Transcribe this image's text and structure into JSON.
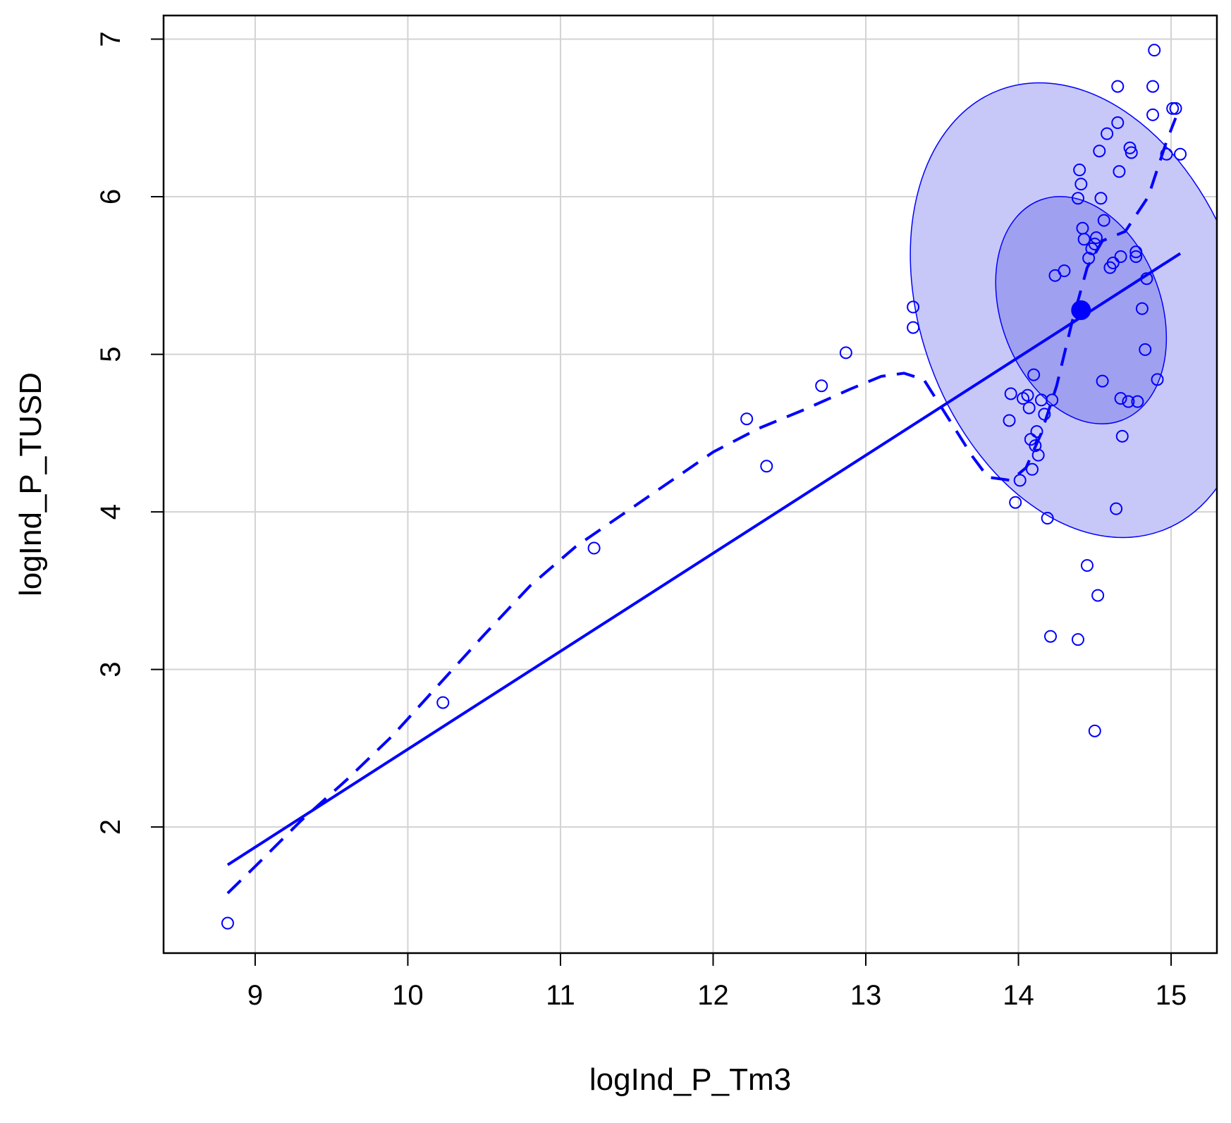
{
  "chart_data": {
    "type": "scatter",
    "title": "",
    "xlabel": "logInd_P_Tm3",
    "ylabel": "logInd_P_TUSD",
    "xlim": [
      8.4,
      15.3
    ],
    "ylim": [
      1.2,
      7.15
    ],
    "xticks": [
      9,
      10,
      11,
      12,
      13,
      14,
      15
    ],
    "yticks": [
      2,
      3,
      4,
      5,
      6,
      7
    ],
    "grid": true,
    "colors": {
      "points": "#0000FF",
      "lines": "#0000FF",
      "ellipse_outer_fill": "#c8c8f8",
      "ellipse_inner_fill": "#a0a0f0",
      "grid": "#d3d3d3",
      "frame": "#000000"
    },
    "points": [
      [
        8.82,
        1.39
      ],
      [
        10.23,
        2.79
      ],
      [
        11.22,
        3.77
      ],
      [
        12.22,
        4.59
      ],
      [
        12.35,
        4.29
      ],
      [
        12.71,
        4.8
      ],
      [
        12.87,
        5.01
      ],
      [
        13.31,
        5.3
      ],
      [
        13.31,
        5.17
      ],
      [
        13.94,
        4.58
      ],
      [
        13.95,
        4.75
      ],
      [
        13.98,
        4.06
      ],
      [
        14.01,
        4.2
      ],
      [
        14.03,
        4.72
      ],
      [
        14.06,
        4.74
      ],
      [
        14.07,
        4.66
      ],
      [
        14.08,
        4.46
      ],
      [
        14.09,
        4.27
      ],
      [
        14.1,
        4.87
      ],
      [
        14.11,
        4.42
      ],
      [
        14.12,
        4.51
      ],
      [
        14.13,
        4.36
      ],
      [
        14.15,
        4.71
      ],
      [
        14.17,
        4.62
      ],
      [
        14.19,
        3.96
      ],
      [
        14.21,
        3.21
      ],
      [
        14.22,
        4.71
      ],
      [
        14.24,
        5.5
      ],
      [
        14.3,
        5.53
      ],
      [
        14.39,
        3.19
      ],
      [
        14.39,
        5.99
      ],
      [
        14.4,
        6.17
      ],
      [
        14.41,
        6.08
      ],
      [
        14.42,
        5.8
      ],
      [
        14.43,
        5.73
      ],
      [
        14.45,
        3.66
      ],
      [
        14.46,
        5.61
      ],
      [
        14.48,
        5.67
      ],
      [
        14.5,
        2.61
      ],
      [
        14.5,
        5.7
      ],
      [
        14.51,
        5.74
      ],
      [
        14.52,
        3.47
      ],
      [
        14.53,
        6.29
      ],
      [
        14.54,
        5.99
      ],
      [
        14.55,
        4.83
      ],
      [
        14.56,
        5.85
      ],
      [
        14.58,
        6.4
      ],
      [
        14.6,
        5.55
      ],
      [
        14.62,
        5.58
      ],
      [
        14.64,
        4.02
      ],
      [
        14.65,
        6.47
      ],
      [
        14.65,
        6.7
      ],
      [
        14.66,
        6.16
      ],
      [
        14.67,
        5.62
      ],
      [
        14.67,
        4.72
      ],
      [
        14.68,
        4.48
      ],
      [
        14.72,
        4.7
      ],
      [
        14.73,
        6.31
      ],
      [
        14.74,
        6.28
      ],
      [
        14.77,
        5.65
      ],
      [
        14.77,
        5.62
      ],
      [
        14.78,
        4.7
      ],
      [
        14.81,
        5.29
      ],
      [
        14.83,
        5.03
      ],
      [
        14.84,
        5.48
      ],
      [
        14.88,
        6.52
      ],
      [
        14.88,
        6.7
      ],
      [
        14.89,
        6.93
      ],
      [
        14.91,
        4.84
      ],
      [
        14.97,
        6.27
      ],
      [
        15.01,
        6.56
      ],
      [
        15.03,
        6.56
      ],
      [
        15.06,
        6.27
      ]
    ],
    "mean_point": [
      14.41,
      5.28
    ],
    "regression_line": [
      [
        8.82,
        1.76
      ],
      [
        15.06,
        5.64
      ]
    ],
    "smooth_curve": [
      [
        8.82,
        1.58
      ],
      [
        9.0,
        1.75
      ],
      [
        9.3,
        2.04
      ],
      [
        9.6,
        2.3
      ],
      [
        9.9,
        2.58
      ],
      [
        10.2,
        2.9
      ],
      [
        10.5,
        3.22
      ],
      [
        10.8,
        3.53
      ],
      [
        11.1,
        3.78
      ],
      [
        11.4,
        3.98
      ],
      [
        11.7,
        4.18
      ],
      [
        12.0,
        4.38
      ],
      [
        12.3,
        4.53
      ],
      [
        12.6,
        4.65
      ],
      [
        12.9,
        4.78
      ],
      [
        13.1,
        4.86
      ],
      [
        13.25,
        4.88
      ],
      [
        13.38,
        4.84
      ],
      [
        13.55,
        4.58
      ],
      [
        13.7,
        4.35
      ],
      [
        13.8,
        4.22
      ],
      [
        13.95,
        4.2
      ],
      [
        14.05,
        4.28
      ],
      [
        14.15,
        4.5
      ],
      [
        14.25,
        4.8
      ],
      [
        14.35,
        5.2
      ],
      [
        14.45,
        5.55
      ],
      [
        14.55,
        5.72
      ],
      [
        14.7,
        5.78
      ],
      [
        14.85,
        6.0
      ],
      [
        14.97,
        6.35
      ],
      [
        15.03,
        6.5
      ]
    ],
    "ellipses": [
      {
        "level": "outer",
        "center": [
          14.41,
          5.28
        ],
        "rx_data": 2.1,
        "ry_data": 2.98,
        "rotation_deg": -20
      },
      {
        "level": "inner",
        "center": [
          14.41,
          5.28
        ],
        "rx_data": 1.05,
        "ry_data": 1.49,
        "rotation_deg": -20
      }
    ]
  }
}
